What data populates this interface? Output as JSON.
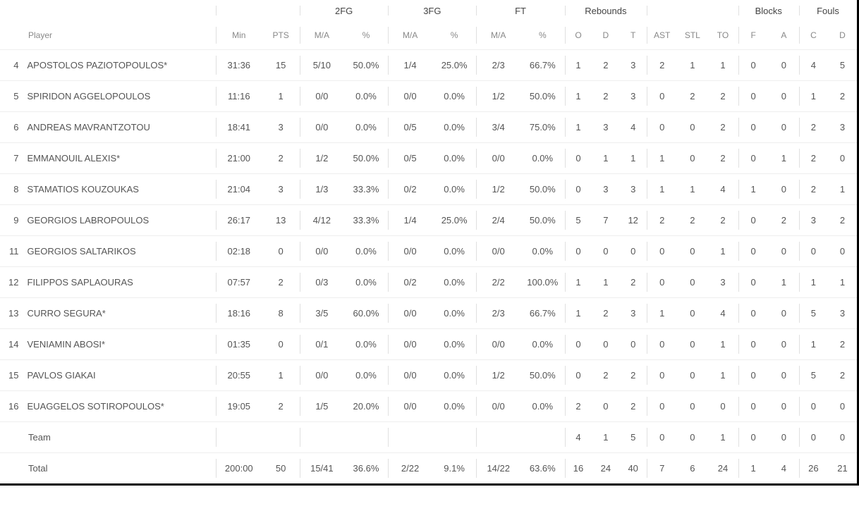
{
  "headers": {
    "player": "Player",
    "min": "Min",
    "pts": "PTS",
    "groups": {
      "fg2": "2FG",
      "fg3": "3FG",
      "ft": "FT",
      "rebounds": "Rebounds",
      "blocks": "Blocks",
      "fouls": "Fouls"
    },
    "ma": "M/A",
    "pct": "%",
    "reb_o": "O",
    "reb_d": "D",
    "reb_t": "T",
    "ast": "AST",
    "stl": "STL",
    "to": "TO",
    "blk_f": "F",
    "blk_a": "A",
    "foul_c": "C",
    "foul_d": "D"
  },
  "rows": [
    {
      "num": "4",
      "name": "APOSTOLOS PAZIOTOPOULOS*",
      "min": "31:36",
      "pts": "15",
      "fg2_ma": "5/10",
      "fg2_pct": "50.0%",
      "fg3_ma": "1/4",
      "fg3_pct": "25.0%",
      "ft_ma": "2/3",
      "ft_pct": "66.7%",
      "ro": "1",
      "rd": "2",
      "rt": "3",
      "ast": "2",
      "stl": "1",
      "to": "1",
      "bf": "0",
      "ba": "0",
      "fc": "4",
      "fd": "5"
    },
    {
      "num": "5",
      "name": "SPIRIDON AGGELOPOULOS",
      "min": "11:16",
      "pts": "1",
      "fg2_ma": "0/0",
      "fg2_pct": "0.0%",
      "fg3_ma": "0/0",
      "fg3_pct": "0.0%",
      "ft_ma": "1/2",
      "ft_pct": "50.0%",
      "ro": "1",
      "rd": "2",
      "rt": "3",
      "ast": "0",
      "stl": "2",
      "to": "2",
      "bf": "0",
      "ba": "0",
      "fc": "1",
      "fd": "2"
    },
    {
      "num": "6",
      "name": "ANDREAS MAVRANTZOTOU",
      "min": "18:41",
      "pts": "3",
      "fg2_ma": "0/0",
      "fg2_pct": "0.0%",
      "fg3_ma": "0/5",
      "fg3_pct": "0.0%",
      "ft_ma": "3/4",
      "ft_pct": "75.0%",
      "ro": "1",
      "rd": "3",
      "rt": "4",
      "ast": "0",
      "stl": "0",
      "to": "2",
      "bf": "0",
      "ba": "0",
      "fc": "2",
      "fd": "3"
    },
    {
      "num": "7",
      "name": "EMMANOUIL ALEXIS*",
      "min": "21:00",
      "pts": "2",
      "fg2_ma": "1/2",
      "fg2_pct": "50.0%",
      "fg3_ma": "0/5",
      "fg3_pct": "0.0%",
      "ft_ma": "0/0",
      "ft_pct": "0.0%",
      "ro": "0",
      "rd": "1",
      "rt": "1",
      "ast": "1",
      "stl": "0",
      "to": "2",
      "bf": "0",
      "ba": "1",
      "fc": "2",
      "fd": "0"
    },
    {
      "num": "8",
      "name": "STAMATIOS KOUZOUKAS",
      "min": "21:04",
      "pts": "3",
      "fg2_ma": "1/3",
      "fg2_pct": "33.3%",
      "fg3_ma": "0/2",
      "fg3_pct": "0.0%",
      "ft_ma": "1/2",
      "ft_pct": "50.0%",
      "ro": "0",
      "rd": "3",
      "rt": "3",
      "ast": "1",
      "stl": "1",
      "to": "4",
      "bf": "1",
      "ba": "0",
      "fc": "2",
      "fd": "1"
    },
    {
      "num": "9",
      "name": "GEORGIOS LABROPOULOS",
      "min": "26:17",
      "pts": "13",
      "fg2_ma": "4/12",
      "fg2_pct": "33.3%",
      "fg3_ma": "1/4",
      "fg3_pct": "25.0%",
      "ft_ma": "2/4",
      "ft_pct": "50.0%",
      "ro": "5",
      "rd": "7",
      "rt": "12",
      "ast": "2",
      "stl": "2",
      "to": "2",
      "bf": "0",
      "ba": "2",
      "fc": "3",
      "fd": "2"
    },
    {
      "num": "11",
      "name": "GEORGIOS SALTARIKOS",
      "min": "02:18",
      "pts": "0",
      "fg2_ma": "0/0",
      "fg2_pct": "0.0%",
      "fg3_ma": "0/0",
      "fg3_pct": "0.0%",
      "ft_ma": "0/0",
      "ft_pct": "0.0%",
      "ro": "0",
      "rd": "0",
      "rt": "0",
      "ast": "0",
      "stl": "0",
      "to": "1",
      "bf": "0",
      "ba": "0",
      "fc": "0",
      "fd": "0"
    },
    {
      "num": "12",
      "name": "FILIPPOS SAPLAOURAS",
      "min": "07:57",
      "pts": "2",
      "fg2_ma": "0/3",
      "fg2_pct": "0.0%",
      "fg3_ma": "0/2",
      "fg3_pct": "0.0%",
      "ft_ma": "2/2",
      "ft_pct": "100.0%",
      "ro": "1",
      "rd": "1",
      "rt": "2",
      "ast": "0",
      "stl": "0",
      "to": "3",
      "bf": "0",
      "ba": "1",
      "fc": "1",
      "fd": "1"
    },
    {
      "num": "13",
      "name": "CURRO SEGURA*",
      "min": "18:16",
      "pts": "8",
      "fg2_ma": "3/5",
      "fg2_pct": "60.0%",
      "fg3_ma": "0/0",
      "fg3_pct": "0.0%",
      "ft_ma": "2/3",
      "ft_pct": "66.7%",
      "ro": "1",
      "rd": "2",
      "rt": "3",
      "ast": "1",
      "stl": "0",
      "to": "4",
      "bf": "0",
      "ba": "0",
      "fc": "5",
      "fd": "3"
    },
    {
      "num": "14",
      "name": "VENIAMIN ABOSI*",
      "min": "01:35",
      "pts": "0",
      "fg2_ma": "0/1",
      "fg2_pct": "0.0%",
      "fg3_ma": "0/0",
      "fg3_pct": "0.0%",
      "ft_ma": "0/0",
      "ft_pct": "0.0%",
      "ro": "0",
      "rd": "0",
      "rt": "0",
      "ast": "0",
      "stl": "0",
      "to": "1",
      "bf": "0",
      "ba": "0",
      "fc": "1",
      "fd": "2"
    },
    {
      "num": "15",
      "name": "PAVLOS GIAKAI",
      "min": "20:55",
      "pts": "1",
      "fg2_ma": "0/0",
      "fg2_pct": "0.0%",
      "fg3_ma": "0/0",
      "fg3_pct": "0.0%",
      "ft_ma": "1/2",
      "ft_pct": "50.0%",
      "ro": "0",
      "rd": "2",
      "rt": "2",
      "ast": "0",
      "stl": "0",
      "to": "1",
      "bf": "0",
      "ba": "0",
      "fc": "5",
      "fd": "2"
    },
    {
      "num": "16",
      "name": "EUAGGELOS SOTIROPOULOS*",
      "min": "19:05",
      "pts": "2",
      "fg2_ma": "1/5",
      "fg2_pct": "20.0%",
      "fg3_ma": "0/0",
      "fg3_pct": "0.0%",
      "ft_ma": "0/0",
      "ft_pct": "0.0%",
      "ro": "2",
      "rd": "0",
      "rt": "2",
      "ast": "0",
      "stl": "0",
      "to": "0",
      "bf": "0",
      "ba": "0",
      "fc": "0",
      "fd": "0"
    },
    {
      "num": "",
      "name": "Team",
      "min": "",
      "pts": "",
      "fg2_ma": "",
      "fg2_pct": "",
      "fg3_ma": "",
      "fg3_pct": "",
      "ft_ma": "",
      "ft_pct": "",
      "ro": "4",
      "rd": "1",
      "rt": "5",
      "ast": "0",
      "stl": "0",
      "to": "1",
      "bf": "0",
      "ba": "0",
      "fc": "0",
      "fd": "0"
    },
    {
      "num": "",
      "name": "Total",
      "min": "200:00",
      "pts": "50",
      "fg2_ma": "15/41",
      "fg2_pct": "36.6%",
      "fg3_ma": "2/22",
      "fg3_pct": "9.1%",
      "ft_ma": "14/22",
      "ft_pct": "63.6%",
      "ro": "16",
      "rd": "24",
      "rt": "40",
      "ast": "7",
      "stl": "6",
      "to": "24",
      "bf": "1",
      "ba": "4",
      "fc": "26",
      "fd": "21"
    }
  ]
}
